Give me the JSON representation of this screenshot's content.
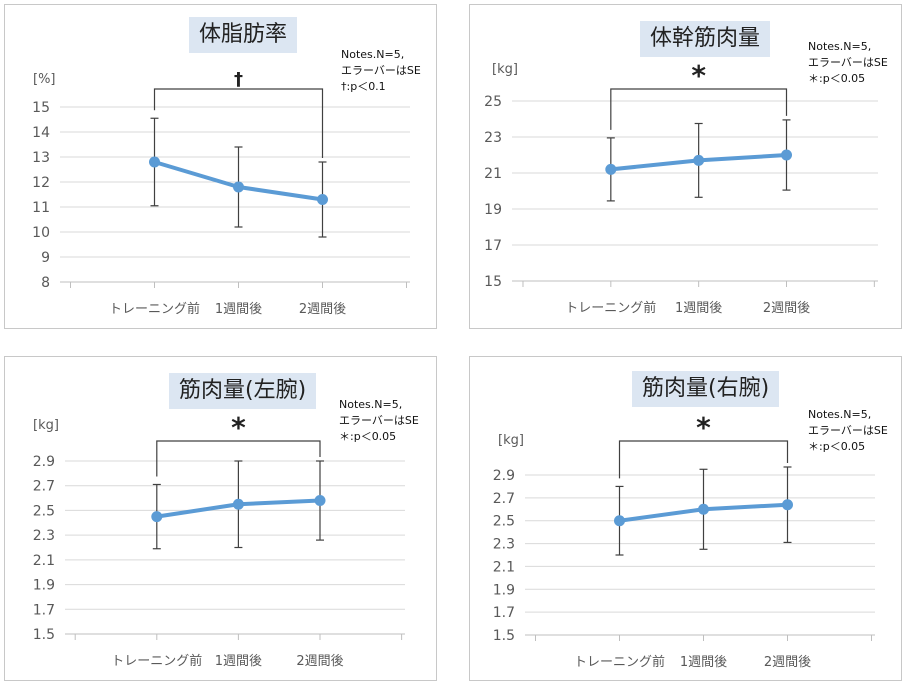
{
  "chart_data": [
    {
      "type": "line",
      "title": "体脂肪率",
      "ylabel": "[%]",
      "categories": [
        "トレーニング前",
        "1週間後",
        "2週間後"
      ],
      "series": [
        {
          "values": [
            12.8,
            11.8,
            11.3
          ],
          "error": [
            1.75,
            1.6,
            1.5
          ]
        }
      ],
      "ylim": [
        8,
        15
      ],
      "yticks": [
        "8",
        "9",
        "10",
        "11",
        "12",
        "13",
        "14",
        "15"
      ],
      "grid": true,
      "significance": {
        "symbol": "†",
        "from": 0,
        "to": 2
      },
      "notes": [
        "Notes.N=5,",
        "エラーバーはSE",
        "†:p＜0.1"
      ],
      "color": "#5b9bd5"
    },
    {
      "type": "line",
      "title": "体幹筋肉量",
      "ylabel": "[kg]",
      "categories": [
        "トレーニング前",
        "1週間後",
        "2週間後"
      ],
      "series": [
        {
          "values": [
            21.2,
            21.7,
            22.0
          ],
          "error": [
            1.75,
            2.05,
            1.95
          ]
        }
      ],
      "ylim": [
        15,
        25
      ],
      "yticks": [
        "15",
        "17",
        "19",
        "21",
        "23",
        "25"
      ],
      "grid": true,
      "significance": {
        "symbol": "*",
        "from": 0,
        "to": 2
      },
      "notes": [
        "Notes.N=5,",
        "エラーバーはSE",
        "＊:p＜0.05"
      ],
      "color": "#5b9bd5"
    },
    {
      "type": "line",
      "title": "筋肉量(左腕)",
      "ylabel": "[kg]",
      "categories": [
        "トレーニング前",
        "1週間後",
        "2週間後"
      ],
      "series": [
        {
          "values": [
            2.45,
            2.55,
            2.58
          ],
          "error": [
            0.26,
            0.35,
            0.32
          ]
        }
      ],
      "ylim": [
        1.5,
        2.9
      ],
      "yticks": [
        "1.5",
        "1.7",
        "1.9",
        "2.1",
        "2.3",
        "2.5",
        "2.7",
        "2.9"
      ],
      "grid": true,
      "significance": {
        "symbol": "*",
        "from": 0,
        "to": 2
      },
      "notes": [
        "Notes.N=5,",
        "エラーバーはSE",
        "＊:p＜0.05"
      ],
      "color": "#5b9bd5"
    },
    {
      "type": "line",
      "title": "筋肉量(右腕)",
      "ylabel": "[kg]",
      "categories": [
        "トレーニング前",
        "1週間後",
        "2週間後"
      ],
      "series": [
        {
          "values": [
            2.5,
            2.6,
            2.64
          ],
          "error": [
            0.3,
            0.35,
            0.33
          ]
        }
      ],
      "ylim": [
        1.5,
        2.9
      ],
      "yticks": [
        "1.5",
        "1.7",
        "1.9",
        "2.1",
        "2.3",
        "2.5",
        "2.7",
        "2.9"
      ],
      "grid": true,
      "significance": {
        "symbol": "*",
        "from": 0,
        "to": 2
      },
      "notes": [
        "Notes.N=5,",
        "エラーバーはSE",
        "＊:p＜0.05"
      ],
      "color": "#5b9bd5"
    }
  ]
}
